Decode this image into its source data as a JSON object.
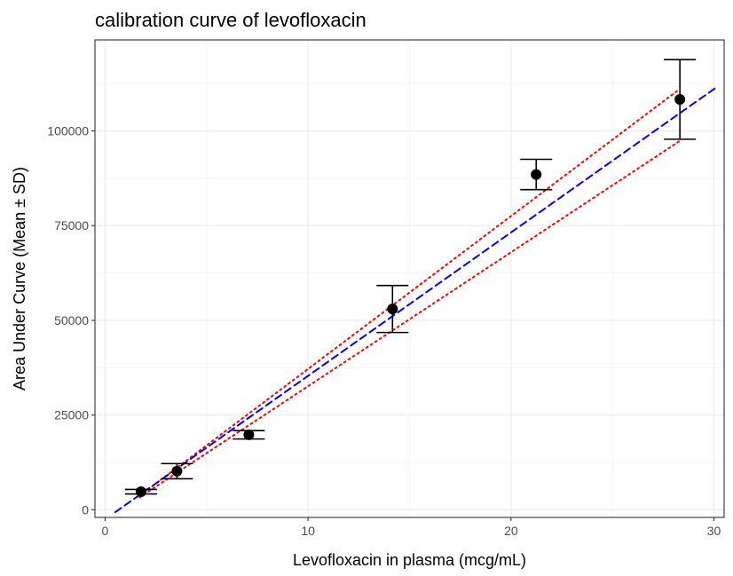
{
  "chart_data": {
    "type": "scatter",
    "title": "calibration curve of levofloxacin",
    "xlabel": "Levofloxacin in plasma (mcg/mL)",
    "ylabel": "Area Under Curve (Mean ± SD)",
    "xlim": [
      -0.5,
      30.5
    ],
    "ylim": [
      -2000,
      124000
    ],
    "x_ticks": [
      0,
      10,
      20,
      30
    ],
    "y_ticks": [
      0,
      25000,
      50000,
      75000,
      100000
    ],
    "x_tick_labels": [
      "0",
      "10",
      "20",
      "30"
    ],
    "y_tick_labels": [
      "0",
      "25000",
      "50000",
      "75000",
      "100000"
    ],
    "grid": true,
    "points": [
      {
        "x": 1.77,
        "mean": 4800,
        "sd": 600
      },
      {
        "x": 3.54,
        "mean": 10200,
        "sd": 2000
      },
      {
        "x": 7.08,
        "mean": 19800,
        "sd": 1100
      },
      {
        "x": 14.16,
        "mean": 53000,
        "sd": 6200
      },
      {
        "x": 21.24,
        "mean": 88500,
        "sd": 4000
      },
      {
        "x": 28.32,
        "mean": 108300,
        "sd": 10500
      }
    ],
    "fit_line": {
      "x": [
        0.5,
        30.2
      ],
      "y": [
        -600,
        111800
      ],
      "color": "#0000ff",
      "style": "dashed"
    },
    "ci_upper": {
      "x": [
        1.7,
        28.3
      ],
      "y": [
        3700,
        111000
      ],
      "color": "#ff0000",
      "style": "dotted"
    },
    "ci_lower": {
      "x": [
        1.7,
        28.3
      ],
      "y": [
        3300,
        97300
      ],
      "color": "#ff0000",
      "style": "dotted"
    }
  }
}
